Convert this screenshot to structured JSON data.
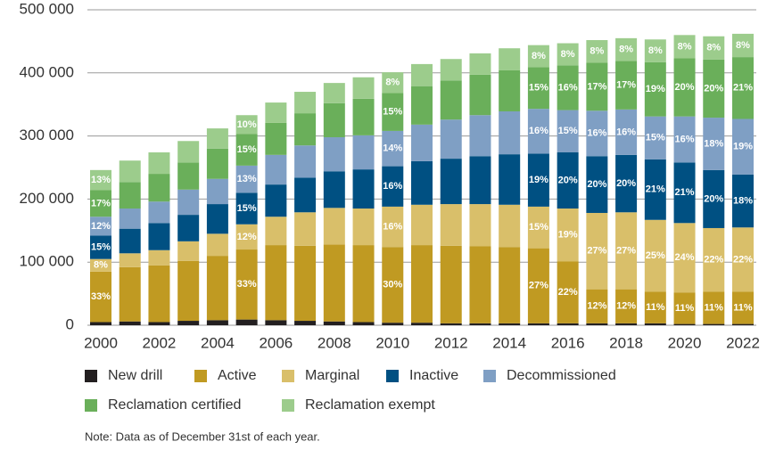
{
  "chart_data": {
    "type": "stacked_bar",
    "categories": [
      "2000",
      null,
      "2002",
      null,
      "2004",
      null,
      "2006",
      null,
      "2008",
      null,
      "2010",
      null,
      "2012",
      null,
      "2014",
      null,
      "2016",
      null,
      "2018",
      null,
      "2020",
      null,
      "2022"
    ],
    "ylim": [
      0,
      500000
    ],
    "yticks": [
      0,
      {
        "value": 100000,
        "label": "100 000"
      },
      {
        "value": 200000,
        "label": "200 000"
      },
      {
        "value": 300000,
        "label": "300 000"
      },
      {
        "value": 400000,
        "label": "400 000"
      },
      {
        "value": 500000,
        "label": "500 000"
      }
    ],
    "grid": true,
    "series": [
      {
        "name": "New drill",
        "color": "#231f20",
        "values": [
          5000,
          6000,
          5000,
          7000,
          8000,
          9000,
          8000,
          7000,
          6000,
          5000,
          4000,
          4000,
          3000,
          3000,
          3000,
          3000,
          3000,
          3000,
          3000,
          3000,
          2000,
          2000,
          2000
        ]
      },
      {
        "name": "Active",
        "color": "#c09a22",
        "values": [
          80000,
          86000,
          90000,
          95000,
          102000,
          111000,
          119000,
          119000,
          122000,
          122000,
          120000,
          123000,
          123000,
          122000,
          121000,
          119000,
          98000,
          54000,
          54000,
          50000,
          50000,
          51000,
          51000
        ],
        "labels": [
          "33%",
          null,
          null,
          null,
          null,
          "33%",
          null,
          null,
          null,
          null,
          "30%",
          null,
          null,
          null,
          null,
          "27%",
          "22%",
          "12%",
          "12%",
          "11%",
          "11%",
          "11%",
          "11%"
        ]
      },
      {
        "name": "Marginal",
        "color": "#d9bf6a",
        "values": [
          20000,
          22000,
          24000,
          31000,
          35000,
          40000,
          45000,
          53000,
          58000,
          58000,
          64000,
          64000,
          66000,
          67000,
          67000,
          66000,
          84000,
          121000,
          122000,
          114000,
          110000,
          101000,
          102000
        ],
        "labels": [
          "8%",
          null,
          null,
          null,
          null,
          "12%",
          null,
          null,
          null,
          null,
          "16%",
          null,
          null,
          null,
          null,
          "15%",
          "19%",
          "27%",
          "27%",
          "25%",
          "24%",
          "22%",
          "22%"
        ]
      },
      {
        "name": "Inactive",
        "color": "#005082",
        "values": [
          37000,
          39000,
          43000,
          42000,
          47000,
          50000,
          51000,
          55000,
          58000,
          62000,
          64000,
          69000,
          72000,
          76000,
          80000,
          84000,
          89000,
          90000,
          91000,
          96000,
          96000,
          92000,
          84000
        ],
        "labels": [
          "15%",
          null,
          null,
          null,
          null,
          "15%",
          null,
          null,
          null,
          null,
          "16%",
          null,
          null,
          null,
          null,
          "19%",
          "20%",
          "20%",
          "20%",
          "21%",
          "21%",
          "20%",
          "18%"
        ]
      },
      {
        "name": "Decommissioned",
        "color": "#7f9fc4",
        "values": [
          30000,
          32000,
          34000,
          40000,
          40000,
          43000,
          47000,
          51000,
          54000,
          54000,
          56000,
          58000,
          62000,
          65000,
          68000,
          71000,
          67000,
          72000,
          72000,
          68000,
          73000,
          83000,
          88000
        ],
        "labels": [
          "12%",
          null,
          null,
          null,
          null,
          "13%",
          null,
          null,
          null,
          null,
          "14%",
          null,
          null,
          null,
          null,
          "16%",
          "15%",
          "16%",
          "16%",
          "15%",
          "16%",
          "18%",
          "19%"
        ]
      },
      {
        "name": "Reclamation certified",
        "color": "#6aaf5a",
        "values": [
          42000,
          42000,
          44000,
          43000,
          48000,
          50000,
          51000,
          51000,
          54000,
          58000,
          60000,
          61000,
          62000,
          64000,
          65000,
          66000,
          71000,
          76000,
          77000,
          86000,
          92000,
          92000,
          98000
        ],
        "labels": [
          "17%",
          null,
          null,
          null,
          null,
          "15%",
          null,
          null,
          null,
          null,
          "15%",
          null,
          null,
          null,
          null,
          "15%",
          "16%",
          "17%",
          "17%",
          "19%",
          "20%",
          "20%",
          "21%"
        ]
      },
      {
        "name": "Reclamation exempt",
        "color": "#9ccc8c",
        "values": [
          32000,
          34000,
          34000,
          34000,
          32000,
          30000,
          32000,
          34000,
          32000,
          34000,
          33000,
          35000,
          34000,
          34000,
          35000,
          35000,
          35000,
          36000,
          36000,
          36000,
          37000,
          37000,
          37000
        ],
        "labels": [
          "13%",
          null,
          null,
          null,
          null,
          "10%",
          null,
          null,
          null,
          null,
          "8%",
          null,
          null,
          null,
          null,
          "8%",
          "8%",
          "8%",
          "8%",
          "8%",
          "8%",
          "8%",
          "8%"
        ]
      }
    ],
    "note": "Note: Data as of December 31st of each year."
  }
}
